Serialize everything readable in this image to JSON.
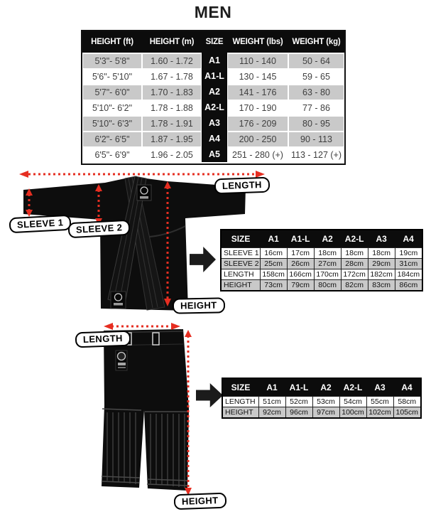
{
  "title": "MEN",
  "main_table": {
    "headers": [
      "HEIGHT (ft)",
      "HEIGHT (m)",
      "SIZE",
      "WEIGHT (lbs)",
      "WEIGHT (kg)"
    ],
    "rows": [
      {
        "height_ft": "5'3\"- 5'8\"",
        "height_m": "1.60 - 1.72",
        "size": "A1",
        "weight_lbs": "110 - 140",
        "weight_kg": "50 - 64",
        "shaded": true
      },
      {
        "height_ft": "5'6\"- 5'10\"",
        "height_m": "1.67 - 1.78",
        "size": "A1-L",
        "weight_lbs": "130 - 145",
        "weight_kg": "59 - 65",
        "shaded": false
      },
      {
        "height_ft": "5'7\"- 6'0\"",
        "height_m": "1.70 - 1.83",
        "size": "A2",
        "weight_lbs": "141 - 176",
        "weight_kg": "63 - 80",
        "shaded": true
      },
      {
        "height_ft": "5'10\"- 6'2\"",
        "height_m": "1.78 - 1.88",
        "size": "A2-L",
        "weight_lbs": "170 - 190",
        "weight_kg": "77 - 86",
        "shaded": false
      },
      {
        "height_ft": "5'10\"- 6'3\"",
        "height_m": "1.78 - 1.91",
        "size": "A3",
        "weight_lbs": "176 - 209",
        "weight_kg": "80 - 95",
        "shaded": true
      },
      {
        "height_ft": "6'2\"- 6'5\"",
        "height_m": "1.87 - 1.95",
        "size": "A4",
        "weight_lbs": "200 - 250",
        "weight_kg": "90 - 113",
        "shaded": true
      },
      {
        "height_ft": "6'5\"- 6'9\"",
        "height_m": "1.96 - 2.05",
        "size": "A5",
        "weight_lbs": "251 - 280 (+)",
        "weight_kg": "113 - 127 (+)",
        "shaded": false
      }
    ]
  },
  "jacket": {
    "labels": {
      "sleeve1": "SLEEVE 1",
      "sleeve2": "SLEEVE 2",
      "length": "LENGTH",
      "height": "HEIGHT"
    },
    "table": {
      "headers": [
        "SIZE",
        "A1",
        "A1-L",
        "A2",
        "A2-L",
        "A3",
        "A4"
      ],
      "rows": [
        {
          "label": "SLEEVE 1",
          "values": [
            "16cm",
            "17cm",
            "18cm",
            "18cm",
            "18cm",
            "19cm"
          ]
        },
        {
          "label": "SLEEVE 2",
          "values": [
            "25cm",
            "26cm",
            "27cm",
            "28cm",
            "29cm",
            "31cm"
          ]
        },
        {
          "label": "LENGTH",
          "values": [
            "158cm",
            "166cm",
            "170cm",
            "172cm",
            "182cm",
            "184cm"
          ]
        },
        {
          "label": "HEIGHT",
          "values": [
            "73cm",
            "79cm",
            "80cm",
            "82cm",
            "83cm",
            "86cm"
          ]
        }
      ]
    }
  },
  "pants": {
    "labels": {
      "length": "LENGTH",
      "height": "HEIGHT"
    },
    "table": {
      "headers": [
        "SIZE",
        "A1",
        "A1-L",
        "A2",
        "A2-L",
        "A3",
        "A4"
      ],
      "rows": [
        {
          "label": "LENGTH",
          "values": [
            "51cm",
            "52cm",
            "53cm",
            "54cm",
            "55cm",
            "58cm"
          ]
        },
        {
          "label": "HEIGHT",
          "values": [
            "92cm",
            "96cm",
            "97cm",
            "100cm",
            "102cm",
            "105cm"
          ]
        }
      ]
    }
  },
  "colors": {
    "accent_red": "#e62e21",
    "row_shade": "#c9c9c9",
    "header_bg": "#0c0c0c",
    "garment_black": "#0d0d0d"
  }
}
